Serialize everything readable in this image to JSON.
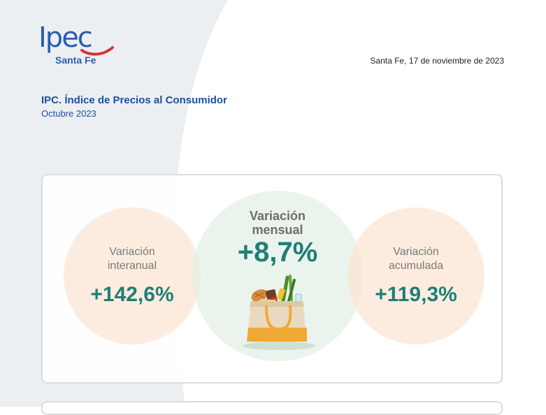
{
  "header": {
    "logo_text": "Ipec",
    "logo_sub": "Santa Fe",
    "date": "Santa Fe, 17 de noviembre de 2023"
  },
  "report": {
    "title": "IPC. Índice de Precios al Consumidor",
    "period": "Octubre 2023"
  },
  "indicators": {
    "interanual": {
      "label_line1": "Variación",
      "label_line2": "interanual",
      "value": "+142,6%"
    },
    "mensual": {
      "label_line1": "Variación",
      "label_line2": "mensual",
      "value": "+8,7%"
    },
    "acumulada": {
      "label_line1": "Variación",
      "label_line2": "acumulada",
      "value": "+119,3%"
    }
  },
  "colors": {
    "brand_blue": "#2a5db0",
    "brand_red": "#d9303a",
    "value_teal": "#1f7e76",
    "peach_circle": "#fbe5d2",
    "mint_circle": "#e3eee6",
    "background_gray": "#eceff1"
  },
  "icons": [
    "shopping-bag-icon"
  ]
}
